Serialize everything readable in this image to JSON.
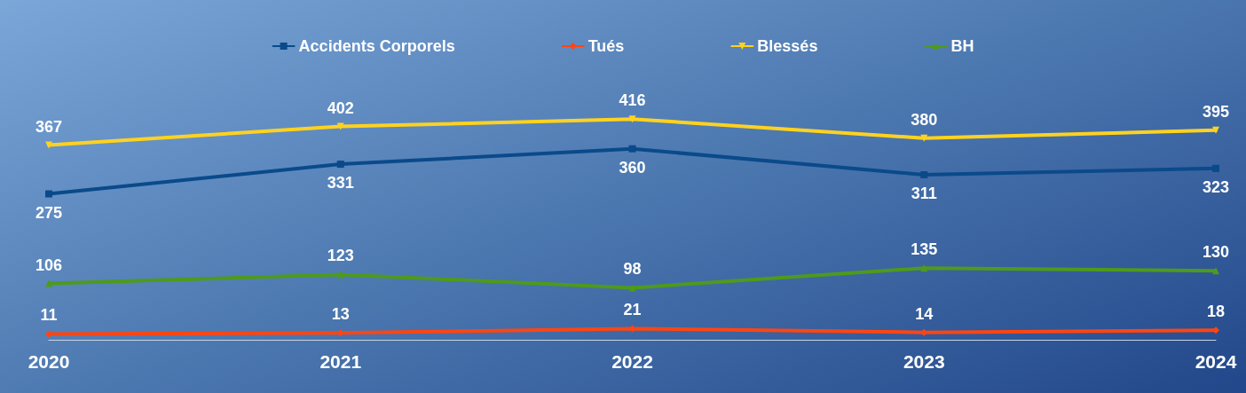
{
  "chart_data": {
    "type": "line",
    "categories": [
      "2020",
      "2021",
      "2022",
      "2023",
      "2024"
    ],
    "series": [
      {
        "name": "Accidents Corporels",
        "color": "#0a4a8a",
        "marker": "square",
        "values": [
          275,
          331,
          360,
          311,
          323
        ]
      },
      {
        "name": "Tués",
        "color": "#ff4512",
        "marker": "diamond",
        "values": [
          11,
          13,
          21,
          14,
          18
        ]
      },
      {
        "name": "Blessés",
        "color": "#ffd21f",
        "marker": "triangle-down",
        "values": [
          367,
          402,
          416,
          380,
          395
        ]
      },
      {
        "name": "BH",
        "color": "#4e9a1c",
        "marker": "triangle",
        "values": [
          106,
          123,
          98,
          135,
          130
        ]
      }
    ],
    "data_labels": true,
    "legend": "top",
    "grid": false
  }
}
